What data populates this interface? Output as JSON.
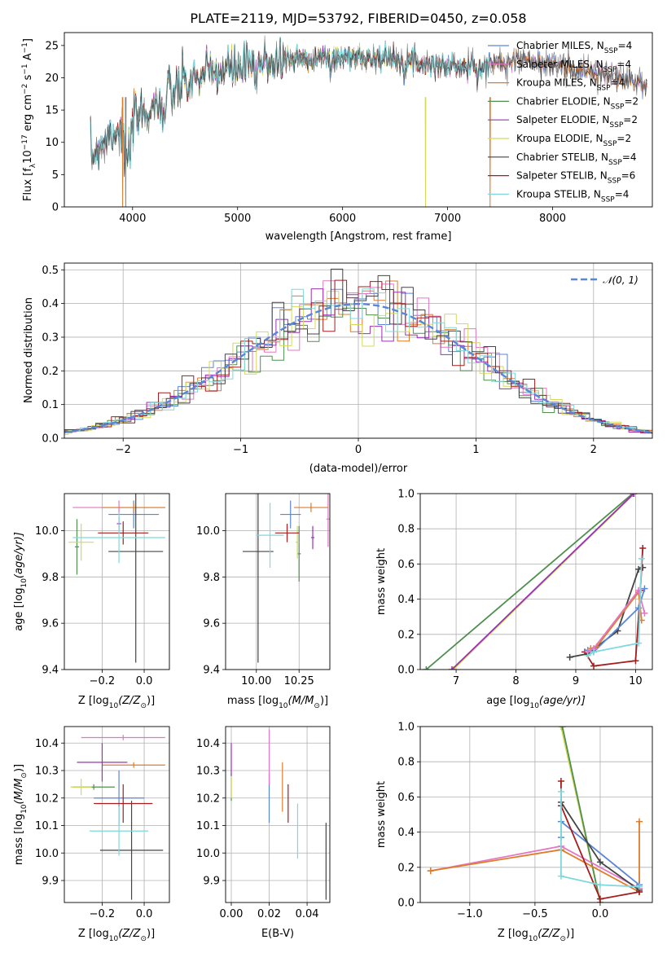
{
  "colors": {
    "Chabrier MILES": "#5a86d6",
    "Salpeter MILES": "#e377c2",
    "Kroupa MILES": "#e07b2a",
    "Chabrier ELODIE": "#4f8f4f",
    "Salpeter ELODIE": "#9b30b8",
    "Kroupa ELODIE": "#d4d957",
    "Chabrier STELIB": "#444444",
    "Salpeter STELIB": "#a51d1d",
    "Kroupa STELIB": "#7fd8dc"
  },
  "chart_data": [
    {
      "id": "spectrum",
      "type": "line",
      "title": "PLATE=2119, MJD=53792, FIBERID=0450, z=0.058",
      "xlabel": "wavelength [Angstrom, rest frame]",
      "ylabel": "Flux [f",
      "ylabel_sub": "λ",
      "ylabel_rest": "10",
      "ylabel_exp": "−17",
      "ylabel_units": " erg cm",
      "ylabel_units_exp": "−2",
      "ylabel_units2": " s",
      "ylabel_units2_exp": "−1",
      "ylabel_units3": " A",
      "ylabel_units3_exp": "−1",
      "ylabel_end": "]",
      "xlim": [
        3350,
        8950
      ],
      "ylim": [
        0,
        27
      ],
      "xticks": [
        4000,
        5000,
        6000,
        7000,
        8000
      ],
      "yticks": [
        0,
        5,
        10,
        15,
        20,
        25
      ],
      "continuum": [
        [
          3600,
          7.5
        ],
        [
          3700,
          10
        ],
        [
          3850,
          12
        ],
        [
          3950,
          11.5
        ],
        [
          4050,
          14
        ],
        [
          4200,
          15.5
        ],
        [
          4300,
          16.8
        ],
        [
          4500,
          19
        ],
        [
          4700,
          20.5
        ],
        [
          5000,
          21.5
        ],
        [
          5300,
          22.5
        ],
        [
          5600,
          23
        ],
        [
          6000,
          23.2
        ],
        [
          6400,
          23
        ],
        [
          6700,
          22.5
        ],
        [
          7000,
          21.8
        ],
        [
          7300,
          21.5
        ],
        [
          7500,
          22.6
        ],
        [
          7700,
          22.8
        ],
        [
          8000,
          22
        ],
        [
          8300,
          21
        ],
        [
          8600,
          20
        ],
        [
          8900,
          19
        ]
      ],
      "legend": [
        {
          "name": "Chabrier MILES",
          "n": "4"
        },
        {
          "name": "Salpeter MILES",
          "n": "4"
        },
        {
          "name": "Kroupa MILES",
          "n": "4"
        },
        {
          "name": "Chabrier ELODIE",
          "n": "2"
        },
        {
          "name": "Salpeter ELODIE",
          "n": "2"
        },
        {
          "name": "Kroupa ELODIE",
          "n": "2"
        },
        {
          "name": "Chabrier STELIB",
          "n": "4"
        },
        {
          "name": "Salpeter STELIB",
          "n": "6"
        },
        {
          "name": "Kroupa STELIB",
          "n": "4"
        }
      ],
      "legend_suffix": ", N",
      "legend_sub": "SSP",
      "legend_eq": "="
    },
    {
      "id": "residuals",
      "type": "line",
      "xlabel": "(data-model)/error",
      "ylabel": "Normed distribution",
      "xlim": [
        -2.5,
        2.5
      ],
      "ylim": [
        0,
        0.52
      ],
      "xticks": [
        -2,
        -1,
        0,
        1,
        2
      ],
      "xticklabels": [
        "−2",
        "−1",
        "0",
        "1",
        "2"
      ],
      "yticks": [
        0.0,
        0.1,
        0.2,
        0.3,
        0.4,
        0.5
      ],
      "yticklabels": [
        "0.0",
        "0.1",
        "0.2",
        "0.3",
        "0.4",
        "0.5"
      ],
      "gaussian_label": "𝒩(0, 1)",
      "bin_width": 0.1
    },
    {
      "id": "age_vs_Z",
      "type": "scatter",
      "xlabel": "Z [log",
      "xlabel_sub": "10",
      "xlabel_rest": "(Z/Z",
      "xlabel_sun": "⊙",
      "xlabel_end": ")]",
      "ylabel": "age  [log",
      "ylabel_sub": "10",
      "ylabel_rest": "(age/yr)]",
      "xlim": [
        -0.38,
        0.12
      ],
      "ylim": [
        9.4,
        10.16
      ],
      "xticks": [
        -0.2,
        0.0
      ],
      "xticklabels": [
        "−0.2",
        "0.0"
      ],
      "yticks": [
        9.4,
        9.6,
        9.8,
        10.0
      ],
      "yticklabels": [
        "9.4",
        "9.6",
        "9.8",
        "10.0"
      ],
      "points": [
        {
          "model": "Chabrier MILES",
          "x": -0.05,
          "y": 10.07,
          "xe": 0.12,
          "ye": 0.06
        },
        {
          "model": "Salpeter MILES",
          "x": -0.12,
          "y": 10.1,
          "xe": 0.22,
          "ye": 0.03
        },
        {
          "model": "Kroupa MILES",
          "x": -0.05,
          "y": 10.1,
          "xe": 0.15,
          "ye": 0.02
        },
        {
          "model": "Chabrier ELODIE",
          "x": -0.32,
          "y": 9.93,
          "xe": 0.01,
          "ye": 0.12
        },
        {
          "model": "Salpeter ELODIE",
          "x": -0.12,
          "y": 10.03,
          "xe": 0.01,
          "ye": 0.03
        },
        {
          "model": "Kroupa ELODIE",
          "x": -0.3,
          "y": 9.95,
          "xe": 0.06,
          "ye": 0.08
        },
        {
          "model": "Chabrier STELIB",
          "x": -0.04,
          "y": 9.91,
          "xe": 0.13,
          "ye": 0.48
        },
        {
          "model": "Salpeter STELIB",
          "x": -0.1,
          "y": 9.99,
          "xe": 0.12,
          "ye": 0.05
        },
        {
          "model": "Kroupa STELIB",
          "x": -0.12,
          "y": 9.97,
          "xe": 0.22,
          "ye": 0.11
        }
      ]
    },
    {
      "id": "age_vs_mass",
      "type": "scatter",
      "xlabel": "mass [log",
      "xlabel_sub": "10",
      "xlabel_rest": "(M/M",
      "xlabel_sun": "⊙",
      "xlabel_end": ")]",
      "xlim": [
        9.82,
        10.43
      ],
      "ylim": [
        9.4,
        10.16
      ],
      "xticks": [
        10.0,
        10.25
      ],
      "xticklabels": [
        "10.00",
        "10.25"
      ],
      "yticks": [
        9.4,
        9.6,
        9.8,
        10.0
      ],
      "yticklabels": [
        "9.4",
        "9.6",
        "9.8",
        "10.0"
      ],
      "points": [
        {
          "model": "Chabrier MILES",
          "x": 10.2,
          "y": 10.07,
          "xe": 0.06,
          "ye": 0.06
        },
        {
          "model": "Salpeter MILES",
          "x": 10.42,
          "y": 10.05,
          "xe": 0.01,
          "ye": 0.12
        },
        {
          "model": "Kroupa MILES",
          "x": 10.32,
          "y": 10.1,
          "xe": 0.1,
          "ye": 0.02
        },
        {
          "model": "Chabrier ELODIE",
          "x": 10.25,
          "y": 9.9,
          "xe": 0.01,
          "ye": 0.12
        },
        {
          "model": "Salpeter ELODIE",
          "x": 10.33,
          "y": 9.97,
          "xe": 0.01,
          "ye": 0.05
        },
        {
          "model": "Kroupa ELODIE",
          "x": 10.24,
          "y": 9.95,
          "xe": 0.01,
          "ye": 0.07
        },
        {
          "model": "Chabrier STELIB",
          "x": 10.01,
          "y": 9.91,
          "xe": 0.09,
          "ye": 0.48
        },
        {
          "model": "Salpeter STELIB",
          "x": 10.18,
          "y": 9.99,
          "xe": 0.07,
          "ye": 0.04
        },
        {
          "model": "Kroupa STELIB",
          "x": 10.08,
          "y": 9.98,
          "xe": 0.08,
          "ye": 0.14
        }
      ]
    },
    {
      "id": "weight_vs_age",
      "type": "line",
      "xlabel": "age  [log",
      "xlabel_sub": "10",
      "xlabel_rest": "(age/yr)]",
      "ylabel": "mass weight",
      "xlim": [
        6.4,
        10.28
      ],
      "ylim": [
        0,
        1
      ],
      "xticks": [
        7,
        8,
        9,
        10
      ],
      "xticklabels": [
        "7",
        "8",
        "9",
        "10"
      ],
      "yticks": [
        0.0,
        0.2,
        0.4,
        0.6,
        0.8,
        1.0
      ],
      "yticklabels": [
        "0.0",
        "0.2",
        "0.4",
        "0.6",
        "0.8",
        "1.0"
      ],
      "series": [
        {
          "model": "Chabrier ELODIE",
          "x": [
            6.5,
            9.95
          ],
          "y": [
            0.0,
            1.0
          ]
        },
        {
          "model": "Kroupa ELODIE",
          "x": [
            6.95,
            9.98
          ],
          "y": [
            0.0,
            1.0
          ]
        },
        {
          "model": "Salpeter ELODIE",
          "x": [
            6.93,
            9.97
          ],
          "y": [
            0.0,
            1.0
          ]
        },
        {
          "model": "Chabrier STELIB",
          "x": [
            8.9,
            9.2,
            9.7,
            10.05,
            10.12
          ],
          "y": [
            0.07,
            0.09,
            0.22,
            0.57,
            0.58
          ]
        },
        {
          "model": "Salpeter STELIB",
          "x": [
            9.15,
            9.3,
            10.0,
            10.08,
            10.12
          ],
          "y": [
            0.1,
            0.02,
            0.05,
            0.45,
            0.69
          ]
        },
        {
          "model": "Chabrier MILES",
          "x": [
            9.2,
            9.3,
            10.05,
            10.15
          ],
          "y": [
            0.11,
            0.1,
            0.35,
            0.46
          ]
        },
        {
          "model": "Kroupa MILES",
          "x": [
            9.25,
            9.35,
            10.05,
            10.1
          ],
          "y": [
            0.12,
            0.13,
            0.44,
            0.28
          ]
        },
        {
          "model": "Salpeter MILES",
          "x": [
            9.2,
            9.3,
            10.05,
            10.15
          ],
          "y": [
            0.1,
            0.12,
            0.45,
            0.32
          ]
        },
        {
          "model": "Kroupa STELIB",
          "x": [
            9.2,
            9.3,
            10.05,
            10.1
          ],
          "y": [
            0.08,
            0.1,
            0.15,
            0.63
          ]
        }
      ]
    },
    {
      "id": "mass_vs_Z",
      "type": "scatter",
      "xlabel": "Z [log",
      "xlabel_sub": "10",
      "xlabel_rest": "(Z/Z",
      "xlabel_sun": "⊙",
      "xlabel_end": ")]",
      "ylabel": "mass [log",
      "ylabel_sub": "10",
      "ylabel_rest": "(M/M",
      "ylabel_sun": "⊙",
      "ylabel_end": ")]",
      "xlim": [
        -0.38,
        0.12
      ],
      "ylim": [
        9.82,
        10.46
      ],
      "xticks": [
        -0.2,
        0.0
      ],
      "xticklabels": [
        "−0.2",
        "0.0"
      ],
      "yticks": [
        9.9,
        10.0,
        10.1,
        10.2,
        10.3,
        10.4
      ],
      "yticklabels": [
        "9.9",
        "10.0",
        "10.1",
        "10.2",
        "10.3",
        "10.4"
      ],
      "points": [
        {
          "model": "Chabrier MILES",
          "x": -0.12,
          "y": 10.2,
          "xe": 0.12,
          "ye": 0.1
        },
        {
          "model": "Salpeter MILES",
          "x": -0.1,
          "y": 10.42,
          "xe": 0.2,
          "ye": 0.01
        },
        {
          "model": "Kroupa MILES",
          "x": -0.05,
          "y": 10.32,
          "xe": 0.15,
          "ye": 0.01
        },
        {
          "model": "Chabrier ELODIE",
          "x": -0.24,
          "y": 10.24,
          "xe": 0.1,
          "ye": 0.01
        },
        {
          "model": "Salpeter ELODIE",
          "x": -0.2,
          "y": 10.33,
          "xe": 0.12,
          "ye": 0.07
        },
        {
          "model": "Kroupa ELODIE",
          "x": -0.3,
          "y": 10.24,
          "xe": 0.05,
          "ye": 0.03
        },
        {
          "model": "Chabrier STELIB",
          "x": -0.06,
          "y": 10.01,
          "xe": 0.15,
          "ye": 0.18
        },
        {
          "model": "Salpeter STELIB",
          "x": -0.1,
          "y": 10.18,
          "xe": 0.14,
          "ye": 0.07
        },
        {
          "model": "Kroupa STELIB",
          "x": -0.12,
          "y": 10.08,
          "xe": 0.14,
          "ye": 0.09
        }
      ]
    },
    {
      "id": "mass_vs_EBV",
      "type": "scatter",
      "xlabel": "E(B-V)",
      "xlim": [
        -0.003,
        0.052
      ],
      "ylim": [
        9.82,
        10.46
      ],
      "xticks": [
        0.0,
        0.02,
        0.04
      ],
      "xticklabels": [
        "0.00",
        "0.02",
        "0.04"
      ],
      "yticks": [
        9.9,
        10.0,
        10.1,
        10.2,
        10.3,
        10.4
      ],
      "yticklabels": [
        "9.9",
        "10.0",
        "10.1",
        "10.2",
        "10.3",
        "10.4"
      ],
      "points": [
        {
          "model": "Chabrier MILES",
          "x": 0.02,
          "y": 10.2,
          "xe": 0.0,
          "ye": 0.09
        },
        {
          "model": "Salpeter MILES",
          "x": 0.02,
          "y": 10.35,
          "xe": 0.0,
          "ye": 0.1
        },
        {
          "model": "Kroupa MILES",
          "x": 0.027,
          "y": 10.24,
          "xe": 0.0,
          "ye": 0.09
        },
        {
          "model": "Chabrier ELODIE",
          "x": 0.0,
          "y": 10.24,
          "xe": 0.0,
          "ye": 0.05
        },
        {
          "model": "Salpeter ELODIE",
          "x": 0.0,
          "y": 10.34,
          "xe": 0.0,
          "ye": 0.06
        },
        {
          "model": "Kroupa ELODIE",
          "x": 0.0,
          "y": 10.24,
          "xe": 0.0,
          "ye": 0.04
        },
        {
          "model": "Chabrier STELIB",
          "x": 0.05,
          "y": 9.97,
          "xe": 0.0,
          "ye": 0.14
        },
        {
          "model": "Salpeter STELIB",
          "x": 0.03,
          "y": 10.18,
          "xe": 0.0,
          "ye": 0.07
        },
        {
          "model": "Kroupa STELIB",
          "x": 0.035,
          "y": 10.08,
          "xe": 0.0,
          "ye": 0.1
        }
      ]
    },
    {
      "id": "weight_vs_Z",
      "type": "line",
      "xlabel": "Z [log",
      "xlabel_sub": "10",
      "xlabel_rest": "(Z/Z",
      "xlabel_sun": "⊙",
      "xlabel_end": ")]",
      "ylabel": "mass weight",
      "xlim": [
        -1.38,
        0.4
      ],
      "ylim": [
        0,
        1
      ],
      "xticks": [
        -1.0,
        -0.5,
        0.0
      ],
      "xticklabels": [
        "−1.0",
        "−0.5",
        "0.0"
      ],
      "yticks": [
        0.0,
        0.2,
        0.4,
        0.6,
        0.8,
        1.0
      ],
      "yticklabels": [
        "0.0",
        "0.2",
        "0.4",
        "0.6",
        "0.8",
        "1.0"
      ],
      "series": [
        {
          "model": "Kroupa ELODIE",
          "x": [
            -0.3,
            0.0
          ],
          "y": [
            1.0,
            0.0
          ]
        },
        {
          "model": "Chabrier ELODIE",
          "x": [
            -0.29,
            0.0
          ],
          "y": [
            1.0,
            0.0
          ]
        },
        {
          "model": "Salpeter MILES",
          "x": [
            -1.3,
            -0.3,
            0.3
          ],
          "y": [
            0.18,
            0.32,
            0.08
          ]
        },
        {
          "model": "Kroupa MILES",
          "x": [
            -1.3,
            -0.3,
            0.3,
            0.3
          ],
          "y": [
            0.18,
            0.3,
            0.06,
            0.46
          ]
        },
        {
          "model": "Chabrier MILES",
          "x": [
            -0.3,
            -0.3,
            0.3
          ],
          "y": [
            0.37,
            0.46,
            0.1
          ]
        },
        {
          "model": "Chabrier STELIB",
          "x": [
            -0.3,
            0.0,
            0.3
          ],
          "y": [
            0.57,
            0.23,
            0.07
          ]
        },
        {
          "model": "Salpeter STELIB",
          "x": [
            -0.3,
            -0.3,
            0.0,
            0.3
          ],
          "y": [
            0.69,
            0.55,
            0.02,
            0.06
          ]
        },
        {
          "model": "Kroupa STELIB",
          "x": [
            -0.3,
            -0.3,
            0.0,
            0.3
          ],
          "y": [
            0.63,
            0.15,
            0.1,
            0.09
          ]
        }
      ]
    }
  ]
}
